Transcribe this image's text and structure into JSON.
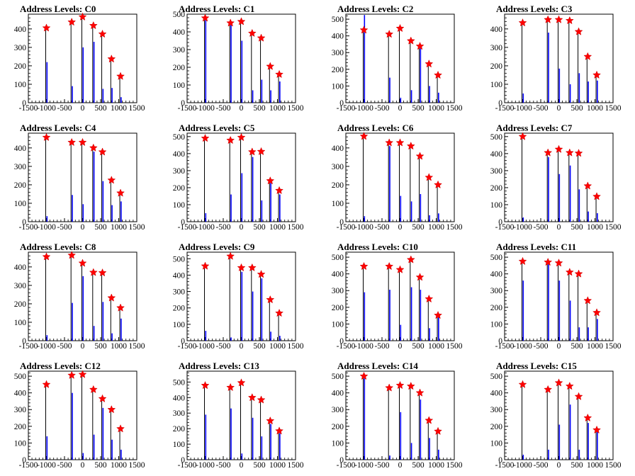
{
  "chart_data": [
    {
      "type": "bar",
      "title": "Address Levels: C0",
      "xlim": [
        -1500,
        1500
      ],
      "ylim": [
        0,
        480
      ],
      "yticks": [
        0,
        100,
        200,
        300,
        400
      ],
      "xticks": [
        "-1500",
        "-1000",
        "-500",
        "0",
        "500",
        "1000",
        "1500"
      ],
      "markers": {
        "x": [
          -1000,
          -300,
          0,
          300,
          550,
          800,
          1050
        ],
        "y": [
          405,
          437,
          465,
          418,
          372,
          237,
          143
        ]
      },
      "blue_bars": {
        "x": [
          -1000,
          -300,
          0,
          300,
          550,
          800,
          1050
        ],
        "y": [
          220,
          90,
          300,
          330,
          75,
          80,
          30
        ]
      }
    },
    {
      "type": "bar",
      "title": "Address Levels: C1",
      "xlim": [
        -1500,
        1500
      ],
      "ylim": [
        0,
        500
      ],
      "yticks": [
        0,
        100,
        200,
        300,
        400,
        500
      ],
      "xticks": [
        "-1500",
        "-1000",
        "-500",
        "0",
        "500",
        "1000",
        "1500"
      ],
      "markers": {
        "x": [
          -1000,
          -300,
          0,
          300,
          550,
          800,
          1050
        ],
        "y": [
          478,
          450,
          458,
          392,
          365,
          205,
          160
        ]
      },
      "blue_bars": {
        "x": [
          -1000,
          -300,
          0,
          300,
          550,
          800,
          1050
        ],
        "y": [
          470,
          440,
          350,
          70,
          130,
          70,
          120
        ]
      }
    },
    {
      "type": "bar",
      "title": "Address Levels: C2",
      "xlim": [
        -1500,
        1500
      ],
      "ylim": [
        0,
        530
      ],
      "yticks": [
        0,
        100,
        200,
        300,
        400,
        500
      ],
      "xticks": [
        "-1500",
        "-1000",
        "-500",
        "0",
        "500",
        "1000",
        "1500"
      ],
      "markers": {
        "x": [
          -1000,
          -300,
          0,
          300,
          550,
          800,
          1050
        ],
        "y": [
          435,
          410,
          445,
          370,
          338,
          232,
          165
        ]
      },
      "blue_bars": {
        "x": [
          -1000,
          -300,
          0,
          300,
          550,
          800,
          1050
        ],
        "y": [
          525,
          150,
          30,
          75,
          330,
          100,
          60
        ]
      }
    },
    {
      "type": "bar",
      "title": "Address Levels: C3",
      "xlim": [
        -1500,
        1500
      ],
      "ylim": [
        0,
        480
      ],
      "yticks": [
        0,
        100,
        200,
        300,
        400
      ],
      "xticks": [
        "-1500",
        "-1000",
        "-500",
        "0",
        "500",
        "1000",
        "1500"
      ],
      "markers": {
        "x": [
          -1000,
          -300,
          0,
          300,
          550,
          800,
          1050
        ],
        "y": [
          433,
          450,
          450,
          445,
          385,
          250,
          150
        ]
      },
      "blue_bars": {
        "x": [
          -1000,
          -300,
          0,
          300,
          550,
          800,
          1050
        ],
        "y": [
          50,
          380,
          185,
          100,
          160,
          115,
          120
        ]
      }
    },
    {
      "type": "bar",
      "title": "Address Levels: C4",
      "xlim": [
        -1500,
        1500
      ],
      "ylim": [
        0,
        480
      ],
      "yticks": [
        0,
        100,
        200,
        300,
        400
      ],
      "xticks": [
        "-1500",
        "-1000",
        "-500",
        "0",
        "500",
        "1000",
        "1500"
      ],
      "markers": {
        "x": [
          -1000,
          -300,
          0,
          300,
          550,
          800,
          1050
        ],
        "y": [
          457,
          430,
          430,
          400,
          378,
          225,
          155
        ]
      },
      "blue_bars": {
        "x": [
          -1000,
          -300,
          0,
          300,
          550,
          800,
          1050
        ],
        "y": [
          30,
          145,
          95,
          380,
          220,
          90,
          110
        ]
      }
    },
    {
      "type": "bar",
      "title": "Address Levels: C5",
      "xlim": [
        -1500,
        1500
      ],
      "ylim": [
        0,
        520
      ],
      "yticks": [
        0,
        100,
        200,
        300,
        400,
        500
      ],
      "xticks": [
        "-1500",
        "-1000",
        "-500",
        "0",
        "500",
        "1000",
        "1500"
      ],
      "markers": {
        "x": [
          -1000,
          -300,
          0,
          300,
          550,
          800,
          1050
        ],
        "y": [
          490,
          478,
          495,
          410,
          412,
          240,
          183
        ]
      },
      "blue_bars": {
        "x": [
          -1000,
          -300,
          0,
          300,
          550,
          800,
          1050
        ],
        "y": [
          50,
          160,
          285,
          380,
          125,
          230,
          160
        ]
      }
    },
    {
      "type": "bar",
      "title": "Address Levels: C6",
      "xlim": [
        -1500,
        1500
      ],
      "ylim": [
        0,
        480
      ],
      "yticks": [
        0,
        100,
        200,
        300,
        400
      ],
      "xticks": [
        "-1500",
        "-1000",
        "-500",
        "0",
        "500",
        "1000",
        "1500"
      ],
      "markers": {
        "x": [
          -1000,
          -300,
          0,
          300,
          550,
          800,
          1050
        ],
        "y": [
          463,
          428,
          428,
          410,
          355,
          240,
          200
        ]
      },
      "blue_bars": {
        "x": [
          -1000,
          -300,
          0,
          300,
          550,
          800,
          1050
        ],
        "y": [
          30,
          410,
          140,
          110,
          150,
          35,
          45
        ]
      }
    },
    {
      "type": "bar",
      "title": "Address Levels: C7",
      "xlim": [
        -1500,
        1500
      ],
      "ylim": [
        0,
        520
      ],
      "yticks": [
        0,
        100,
        200,
        300,
        400,
        500
      ],
      "xticks": [
        "-1500",
        "-1000",
        "-500",
        "0",
        "500",
        "1000",
        "1500"
      ],
      "markers": {
        "x": [
          -1000,
          -300,
          0,
          300,
          550,
          800,
          1050
        ],
        "y": [
          500,
          405,
          425,
          405,
          402,
          210,
          148
        ]
      },
      "blue_bars": {
        "x": [
          -1000,
          -300,
          0,
          300,
          550,
          800,
          1050
        ],
        "y": [
          25,
          380,
          280,
          330,
          190,
          60,
          50
        ]
      }
    },
    {
      "type": "bar",
      "title": "Address Levels: C8",
      "xlim": [
        -1500,
        1500
      ],
      "ylim": [
        0,
        480
      ],
      "yticks": [
        0,
        100,
        200,
        300,
        400
      ],
      "xticks": [
        "-1500",
        "-1000",
        "-500",
        "0",
        "500",
        "1000",
        "1500"
      ],
      "markers": {
        "x": [
          -1000,
          -300,
          0,
          300,
          550,
          800,
          1050
        ],
        "y": [
          455,
          463,
          420,
          370,
          368,
          232,
          178
        ]
      },
      "blue_bars": {
        "x": [
          -1000,
          -300,
          0,
          300,
          550,
          800,
          1050
        ],
        "y": [
          30,
          205,
          350,
          80,
          210,
          40,
          120
        ]
      }
    },
    {
      "type": "bar",
      "title": "Address Levels: C9",
      "xlim": [
        -1500,
        1500
      ],
      "ylim": [
        0,
        540
      ],
      "yticks": [
        0,
        100,
        200,
        300,
        400,
        500
      ],
      "xticks": [
        "-1500",
        "-1000",
        "-500",
        "0",
        "500",
        "1000",
        "1500"
      ],
      "markers": {
        "x": [
          -1000,
          -300,
          0,
          300,
          550,
          800,
          1050
        ],
        "y": [
          455,
          515,
          445,
          445,
          405,
          250,
          168
        ]
      },
      "blue_bars": {
        "x": [
          -1000,
          -300,
          0,
          300,
          550,
          800,
          1050
        ],
        "y": [
          60,
          20,
          420,
          300,
          380,
          55,
          30
        ]
      }
    },
    {
      "type": "bar",
      "title": "Address Levels: C10",
      "xlim": [
        -1500,
        1500
      ],
      "ylim": [
        0,
        530
      ],
      "yticks": [
        0,
        100,
        200,
        300,
        400,
        500
      ],
      "xticks": [
        "-1500",
        "-1000",
        "-500",
        "0",
        "500",
        "1000",
        "1500"
      ],
      "markers": {
        "x": [
          -1000,
          -300,
          0,
          300,
          550,
          800,
          1050
        ],
        "y": [
          445,
          445,
          425,
          485,
          380,
          250,
          152
        ]
      },
      "blue_bars": {
        "x": [
          -1000,
          -300,
          0,
          300,
          550,
          800,
          1050
        ],
        "y": [
          290,
          305,
          95,
          320,
          305,
          75,
          140
        ]
      }
    },
    {
      "type": "bar",
      "title": "Address Levels: C11",
      "xlim": [
        -1500,
        1500
      ],
      "ylim": [
        0,
        530
      ],
      "yticks": [
        0,
        100,
        200,
        300,
        400,
        500
      ],
      "xticks": [
        "-1500",
        "-1000",
        "-500",
        "0",
        "500",
        "1000",
        "1500"
      ],
      "markers": {
        "x": [
          -1000,
          -300,
          0,
          300,
          550,
          800,
          1050
        ],
        "y": [
          475,
          470,
          465,
          410,
          400,
          240,
          168
        ]
      },
      "blue_bars": {
        "x": [
          -1000,
          -300,
          0,
          300,
          550,
          800,
          1050
        ],
        "y": [
          360,
          465,
          360,
          240,
          80,
          80,
          130
        ]
      }
    },
    {
      "type": "bar",
      "title": "Address Levels: C12",
      "xlim": [
        -1500,
        1500
      ],
      "ylim": [
        0,
        530
      ],
      "yticks": [
        0,
        100,
        200,
        300,
        400,
        500
      ],
      "xticks": [
        "-1500",
        "-1000",
        "-500",
        "0",
        "500",
        "1000",
        "1500"
      ],
      "markers": {
        "x": [
          -1000,
          -300,
          0,
          300,
          550,
          800,
          1050
        ],
        "y": [
          450,
          505,
          510,
          420,
          365,
          300,
          185
        ]
      },
      "blue_bars": {
        "x": [
          -1000,
          -300,
          0,
          300,
          550,
          800,
          1050
        ],
        "y": [
          140,
          400,
          40,
          150,
          310,
          120,
          60
        ]
      }
    },
    {
      "type": "bar",
      "title": "Address Levels: C13",
      "xlim": [
        -1500,
        1500
      ],
      "ylim": [
        0,
        570
      ],
      "yticks": [
        0,
        100,
        200,
        300,
        400,
        500
      ],
      "xticks": [
        "-1500",
        "-1000",
        "-500",
        "0",
        "500",
        "1000",
        "1500"
      ],
      "markers": {
        "x": [
          -1000,
          -300,
          0,
          300,
          550,
          800,
          1050
        ],
        "y": [
          478,
          465,
          495,
          400,
          385,
          250,
          185
        ]
      },
      "blue_bars": {
        "x": [
          -1000,
          -300,
          0,
          300,
          550,
          800,
          1050
        ],
        "y": [
          290,
          330,
          40,
          270,
          150,
          230,
          170
        ]
      }
    },
    {
      "type": "bar",
      "title": "Address Levels: C14",
      "xlim": [
        -1500,
        1500
      ],
      "ylim": [
        0,
        530
      ],
      "yticks": [
        0,
        100,
        200,
        300,
        400,
        500
      ],
      "xticks": [
        "-1500",
        "-1000",
        "-500",
        "0",
        "500",
        "1000",
        "1500"
      ],
      "markers": {
        "x": [
          -1000,
          -300,
          0,
          300,
          550,
          800,
          1050
        ],
        "y": [
          500,
          430,
          445,
          440,
          400,
          235,
          170
        ]
      },
      "blue_bars": {
        "x": [
          -1000,
          -300,
          0,
          300,
          550,
          800,
          1050
        ],
        "y": [
          500,
          25,
          285,
          100,
          360,
          130,
          60
        ]
      }
    },
    {
      "type": "bar",
      "title": "Address Levels: C15",
      "xlim": [
        -1500,
        1500
      ],
      "ylim": [
        0,
        530
      ],
      "yticks": [
        0,
        100,
        200,
        300,
        400,
        500
      ],
      "xticks": [
        "-1500",
        "-1000",
        "-500",
        "0",
        "500",
        "1000",
        "1500"
      ],
      "markers": {
        "x": [
          -1000,
          -300,
          0,
          300,
          550,
          800,
          1050
        ],
        "y": [
          450,
          420,
          460,
          440,
          378,
          250,
          178
        ]
      },
      "blue_bars": {
        "x": [
          -1000,
          -300,
          0,
          300,
          550,
          800,
          1050
        ],
        "y": [
          30,
          60,
          210,
          330,
          60,
          220,
          170
        ]
      }
    }
  ],
  "colors": {
    "bar": "#0000ff",
    "marker": "#ff0000",
    "axis": "#000000",
    "stem": "#000000"
  }
}
